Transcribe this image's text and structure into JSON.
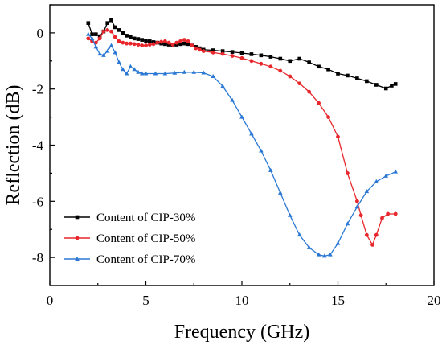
{
  "chart_data": {
    "type": "line",
    "title": "",
    "xlabel": "Frequency (GHz)",
    "ylabel": "Reflection (dB)",
    "xlim": [
      0,
      20
    ],
    "ylim": [
      -9,
      1
    ],
    "x_ticks": [
      0,
      5,
      10,
      15,
      20
    ],
    "y_ticks": [
      0,
      -2,
      -4,
      -6,
      -8
    ],
    "grid": false,
    "legend_position": "bottom-left",
    "series": [
      {
        "name": "Content of CIP-30%",
        "color": "#000000",
        "marker": "square",
        "x": [
          2.0,
          2.2,
          2.4,
          2.6,
          2.8,
          3.0,
          3.2,
          3.4,
          3.6,
          3.8,
          4.0,
          4.2,
          4.4,
          4.6,
          4.8,
          5.0,
          5.2,
          5.4,
          5.6,
          5.8,
          6.0,
          6.2,
          6.4,
          6.6,
          6.8,
          7.0,
          7.2,
          7.4,
          7.6,
          7.8,
          8.0,
          8.5,
          9.0,
          9.5,
          10.0,
          10.5,
          11.0,
          11.5,
          12.0,
          12.5,
          13.0,
          13.5,
          14.0,
          14.5,
          15.0,
          15.5,
          16.0,
          16.5,
          17.0,
          17.5,
          17.8,
          18.0
        ],
        "values": [
          0.35,
          -0.05,
          -0.05,
          -0.12,
          0.05,
          0.35,
          0.45,
          0.2,
          0.1,
          0.0,
          -0.1,
          -0.15,
          -0.2,
          -0.22,
          -0.25,
          -0.28,
          -0.3,
          -0.33,
          -0.35,
          -0.38,
          -0.4,
          -0.42,
          -0.45,
          -0.42,
          -0.4,
          -0.38,
          -0.4,
          -0.45,
          -0.5,
          -0.55,
          -0.6,
          -0.62,
          -0.65,
          -0.68,
          -0.72,
          -0.76,
          -0.8,
          -0.85,
          -0.92,
          -1.0,
          -0.92,
          -1.05,
          -1.2,
          -1.3,
          -1.45,
          -1.52,
          -1.62,
          -1.72,
          -1.85,
          -1.98,
          -1.88,
          -1.82
        ]
      },
      {
        "name": "Content of CIP-50%",
        "color": "#e8262b",
        "marker": "circle",
        "x": [
          2.0,
          2.2,
          2.4,
          2.6,
          2.8,
          3.0,
          3.2,
          3.4,
          3.6,
          3.8,
          4.0,
          4.2,
          4.4,
          4.6,
          4.8,
          5.0,
          5.2,
          5.4,
          5.6,
          5.8,
          6.0,
          6.2,
          6.4,
          6.6,
          6.8,
          7.0,
          7.2,
          7.4,
          7.6,
          7.8,
          8.0,
          8.5,
          9.0,
          9.5,
          10.0,
          10.5,
          11.0,
          11.5,
          12.0,
          12.5,
          13.0,
          13.5,
          14.0,
          14.5,
          15.0,
          15.5,
          16.0,
          16.2,
          16.5,
          16.8,
          17.0,
          17.3,
          17.6,
          18.0
        ],
        "values": [
          -0.2,
          -0.3,
          -0.35,
          -0.2,
          0.05,
          0.1,
          0.05,
          -0.15,
          -0.3,
          -0.35,
          -0.38,
          -0.38,
          -0.4,
          -0.42,
          -0.45,
          -0.45,
          -0.42,
          -0.4,
          -0.35,
          -0.32,
          -0.3,
          -0.35,
          -0.42,
          -0.35,
          -0.3,
          -0.25,
          -0.3,
          -0.45,
          -0.55,
          -0.6,
          -0.65,
          -0.7,
          -0.75,
          -0.82,
          -0.9,
          -1.0,
          -1.1,
          -1.2,
          -1.35,
          -1.55,
          -1.8,
          -2.1,
          -2.5,
          -3.0,
          -3.7,
          -5.0,
          -6.0,
          -6.5,
          -7.2,
          -7.55,
          -7.2,
          -6.6,
          -6.45,
          -6.45
        ]
      },
      {
        "name": "Content of CIP-70%",
        "color": "#2a78d4",
        "marker": "triangle",
        "x": [
          2.0,
          2.2,
          2.4,
          2.6,
          2.8,
          3.0,
          3.2,
          3.4,
          3.6,
          3.8,
          4.0,
          4.2,
          4.4,
          4.6,
          4.8,
          5.0,
          5.5,
          6.0,
          6.5,
          7.0,
          7.5,
          8.0,
          8.5,
          9.0,
          9.5,
          10.0,
          10.5,
          11.0,
          11.5,
          12.0,
          12.5,
          13.0,
          13.5,
          14.0,
          14.3,
          14.6,
          15.0,
          15.5,
          16.0,
          16.5,
          17.0,
          17.5,
          18.0
        ],
        "values": [
          -0.05,
          -0.2,
          -0.5,
          -0.75,
          -0.8,
          -0.65,
          -0.45,
          -0.7,
          -1.05,
          -1.3,
          -1.45,
          -1.2,
          -1.3,
          -1.4,
          -1.45,
          -1.45,
          -1.45,
          -1.45,
          -1.43,
          -1.4,
          -1.4,
          -1.42,
          -1.55,
          -1.9,
          -2.4,
          -3.0,
          -3.6,
          -4.2,
          -4.9,
          -5.7,
          -6.5,
          -7.2,
          -7.65,
          -7.9,
          -7.95,
          -7.9,
          -7.5,
          -6.8,
          -6.2,
          -5.65,
          -5.3,
          -5.1,
          -4.95
        ]
      }
    ]
  }
}
